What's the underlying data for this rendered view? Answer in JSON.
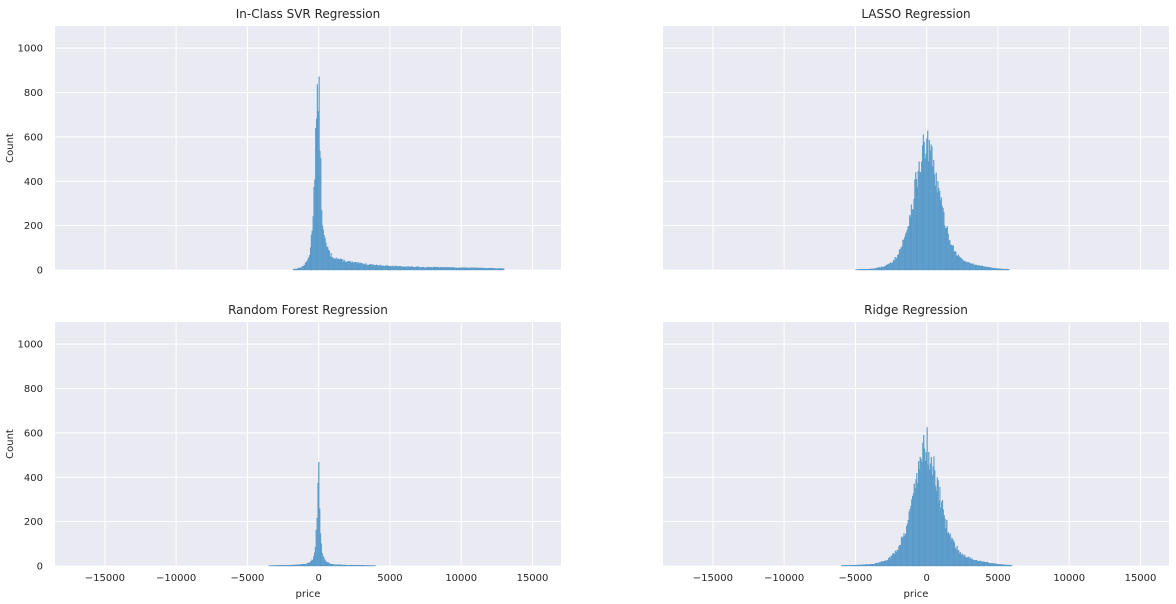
{
  "chart_data": [
    {
      "type": "histogram",
      "title": "In-Class SVR Regression",
      "xlabel": "",
      "ylabel": "Count",
      "xlim": [
        -18500,
        17000
      ],
      "ylim": [
        0,
        1100
      ],
      "xticks": [
        -15000,
        -10000,
        -5000,
        0,
        5000,
        10000,
        15000
      ],
      "yticks": [
        0,
        200,
        400,
        600,
        800,
        1000
      ],
      "show_xtick_labels": false,
      "show_ytick_labels": true,
      "grid": true,
      "distribution": {
        "center": 0,
        "peak": 830,
        "range": [
          -1800,
          13000
        ],
        "shape": "right-skewed with long tail"
      },
      "bins": [
        [
          -1800,
          3
        ],
        [
          -1500,
          6
        ],
        [
          -1200,
          12
        ],
        [
          -1000,
          22
        ],
        [
          -800,
          40
        ],
        [
          -600,
          80
        ],
        [
          -500,
          150
        ],
        [
          -400,
          250
        ],
        [
          -300,
          420
        ],
        [
          -200,
          610
        ],
        [
          -100,
          720
        ],
        [
          0,
          830
        ],
        [
          100,
          600
        ],
        [
          200,
          300
        ],
        [
          300,
          190
        ],
        [
          400,
          140
        ],
        [
          600,
          100
        ],
        [
          800,
          70
        ],
        [
          1000,
          60
        ],
        [
          1500,
          45
        ],
        [
          2000,
          38
        ],
        [
          2500,
          32
        ],
        [
          3000,
          28
        ],
        [
          4000,
          22
        ],
        [
          5000,
          17
        ],
        [
          6000,
          15
        ],
        [
          7000,
          13
        ],
        [
          8000,
          12
        ],
        [
          9000,
          11
        ],
        [
          10000,
          10
        ],
        [
          11000,
          9
        ],
        [
          12000,
          8
        ],
        [
          13000,
          6
        ]
      ]
    },
    {
      "type": "histogram",
      "title": "LASSO Regression",
      "xlabel": "",
      "ylabel": "",
      "xlim": [
        -18500,
        17000
      ],
      "ylim": [
        0,
        1100
      ],
      "xticks": [
        -15000,
        -10000,
        -5000,
        0,
        5000,
        10000,
        15000
      ],
      "yticks": [
        0,
        200,
        400,
        600,
        800,
        1000
      ],
      "show_xtick_labels": false,
      "show_ytick_labels": false,
      "grid": true,
      "distribution": {
        "center": 0,
        "peak": 575,
        "range": [
          -5000,
          5800
        ],
        "shape": "near-normal, slight right tail"
      },
      "bins": [
        [
          -5000,
          2
        ],
        [
          -4000,
          4
        ],
        [
          -3500,
          8
        ],
        [
          -3000,
          15
        ],
        [
          -2500,
          30
        ],
        [
          -2000,
          70
        ],
        [
          -1500,
          150
        ],
        [
          -1000,
          300
        ],
        [
          -500,
          480
        ],
        [
          0,
          575
        ],
        [
          500,
          460
        ],
        [
          1000,
          300
        ],
        [
          1500,
          160
        ],
        [
          2000,
          80
        ],
        [
          2500,
          45
        ],
        [
          3000,
          30
        ],
        [
          3500,
          22
        ],
        [
          4000,
          16
        ],
        [
          4500,
          10
        ],
        [
          5000,
          6
        ],
        [
          5800,
          3
        ]
      ]
    },
    {
      "type": "histogram",
      "title": "Random Forest Regression",
      "xlabel": "price",
      "ylabel": "Count",
      "xlim": [
        -18500,
        17000
      ],
      "ylim": [
        0,
        1100
      ],
      "xticks": [
        -15000,
        -10000,
        -5000,
        0,
        5000,
        10000,
        15000
      ],
      "yticks": [
        0,
        200,
        400,
        600,
        800,
        1000
      ],
      "xtick_labels": [
        "−15000",
        "−10000",
        "−5000",
        "0",
        "5000",
        "10000",
        "15000"
      ],
      "show_xtick_labels": true,
      "show_ytick_labels": true,
      "grid": true,
      "distribution": {
        "center": 0,
        "peak": 535,
        "range": [
          -3500,
          4000
        ],
        "shape": "very narrow spike at 0"
      },
      "bins": [
        [
          -3500,
          2
        ],
        [
          -2500,
          3
        ],
        [
          -1500,
          5
        ],
        [
          -1000,
          8
        ],
        [
          -600,
          15
        ],
        [
          -400,
          30
        ],
        [
          -300,
          60
        ],
        [
          -200,
          110
        ],
        [
          -100,
          250
        ],
        [
          0,
          535
        ],
        [
          100,
          200
        ],
        [
          200,
          90
        ],
        [
          300,
          45
        ],
        [
          500,
          20
        ],
        [
          800,
          10
        ],
        [
          1200,
          6
        ],
        [
          2000,
          4
        ],
        [
          3000,
          3
        ],
        [
          4000,
          2
        ]
      ]
    },
    {
      "type": "histogram",
      "title": "Ridge Regression",
      "xlabel": "price",
      "ylabel": "",
      "xlim": [
        -18500,
        17000
      ],
      "ylim": [
        0,
        1100
      ],
      "xticks": [
        -15000,
        -10000,
        -5000,
        0,
        5000,
        10000,
        15000
      ],
      "yticks": [
        0,
        200,
        400,
        600,
        800,
        1000
      ],
      "xtick_labels": [
        "−15000",
        "−10000",
        "−5000",
        "0",
        "5000",
        "10000",
        "15000"
      ],
      "show_xtick_labels": true,
      "show_ytick_labels": false,
      "grid": true,
      "distribution": {
        "center": 0,
        "peak": 555,
        "range": [
          -6000,
          6000
        ],
        "shape": "near-normal, slight right tail"
      },
      "bins": [
        [
          -6000,
          2
        ],
        [
          -5000,
          4
        ],
        [
          -4000,
          7
        ],
        [
          -3500,
          12
        ],
        [
          -3000,
          20
        ],
        [
          -2500,
          40
        ],
        [
          -2000,
          80
        ],
        [
          -1500,
          160
        ],
        [
          -1000,
          300
        ],
        [
          -500,
          470
        ],
        [
          0,
          555
        ],
        [
          500,
          440
        ],
        [
          1000,
          290
        ],
        [
          1500,
          160
        ],
        [
          2000,
          90
        ],
        [
          2500,
          50
        ],
        [
          3000,
          35
        ],
        [
          3500,
          25
        ],
        [
          4000,
          18
        ],
        [
          4500,
          12
        ],
        [
          5000,
          8
        ],
        [
          6000,
          3
        ]
      ]
    }
  ],
  "colors": {
    "bar_fill": "#6aa7d1",
    "bar_edge": "#4a8ec2",
    "axes_bg": "#eaeaf2",
    "grid": "#ffffff",
    "text": "#262626"
  }
}
